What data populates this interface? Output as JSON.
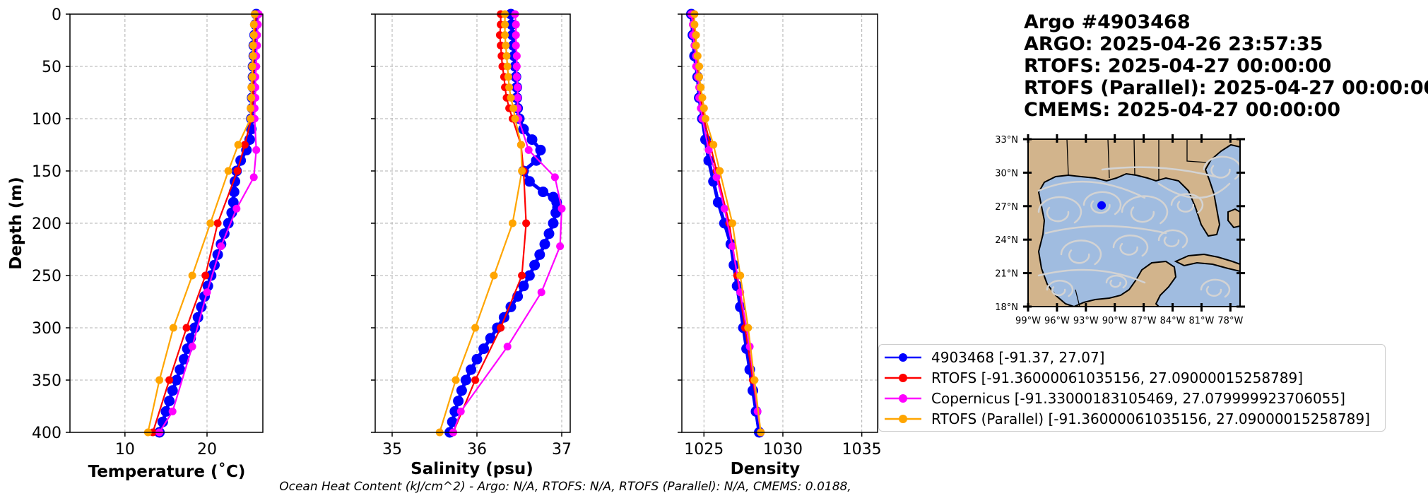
{
  "info": {
    "argo_id": "Argo #4903468",
    "argo_time": "ARGO:  2025-04-26 23:57:35",
    "rtofs_time": "RTOFS: 2025-04-27 00:00:00",
    "rtofs_parallel_time": "RTOFS (Parallel): 2025-04-27 00:00:00",
    "cmems_time": "CMEMS: 2025-04-27 00:00:00"
  },
  "footer": "Ocean Heat Content (kJ/cm^2) - Argo: N/A,  RTOFS: N/A,  RTOFS (Parallel): N/A,  CMEMS: 0.0188,",
  "colors": {
    "argo": "#0000ff",
    "rtofs": "#ff0000",
    "copernicus": "#ff00ff",
    "rtofs_parallel": "#ffa500",
    "land": "#d2b48c",
    "ocean": "#a0bce0",
    "streamlines": "#d3d3d3"
  },
  "legend": [
    {
      "key": "argo",
      "label": "4903468 [-91.37, 27.07]"
    },
    {
      "key": "rtofs",
      "label": "RTOFS [-91.36000061035156, 27.09000015258789]"
    },
    {
      "key": "copernicus",
      "label": "Copernicus [-91.33000183105469, 27.079999923706055]"
    },
    {
      "key": "rtofs_parallel",
      "label": "RTOFS (Parallel) [-91.36000061035156, 27.09000015258789]"
    }
  ],
  "map": {
    "lat_labels": [
      "33°N",
      "30°N",
      "27°N",
      "24°N",
      "21°N",
      "18°N"
    ],
    "lon_labels": [
      "99°W",
      "96°W",
      "93°W",
      "90°W",
      "87°W",
      "84°W",
      "81°W",
      "78°W"
    ],
    "lon_range": [
      -99,
      -77
    ],
    "lat_range": [
      18,
      33
    ],
    "float_location": {
      "lon": -91.37,
      "lat": 27.07
    }
  },
  "chart_data": [
    {
      "type": "line",
      "xlabel": "Temperature (˚C)",
      "ylabel": "Depth (m)",
      "xlim": [
        3.3,
        26.8
      ],
      "ylim": [
        400,
        0
      ],
      "xticks": [
        10,
        20
      ],
      "yticks": [
        0,
        50,
        100,
        150,
        200,
        250,
        300,
        350,
        400
      ],
      "grid": true,
      "series": [
        {
          "key": "argo",
          "depths": [
            0,
            10,
            20,
            30,
            40,
            50,
            60,
            70,
            80,
            90,
            100,
            110,
            120,
            130,
            140,
            150,
            160,
            170,
            180,
            190,
            200,
            210,
            220,
            230,
            240,
            250,
            260,
            270,
            280,
            290,
            300,
            310,
            320,
            330,
            340,
            350,
            360,
            370,
            380,
            390,
            400
          ],
          "values": [
            26.0,
            25.9,
            25.8,
            25.7,
            25.7,
            25.6,
            25.6,
            25.6,
            25.5,
            25.5,
            25.4,
            25.4,
            25.2,
            24.8,
            24.1,
            23.6,
            23.4,
            23.3,
            23.2,
            23.0,
            22.6,
            22.1,
            21.7,
            21.3,
            20.9,
            20.5,
            20.1,
            19.7,
            19.3,
            18.9,
            18.5,
            18.0,
            17.6,
            17.2,
            16.7,
            16.3,
            15.8,
            15.4,
            15.0,
            14.6,
            14.2
          ]
        },
        {
          "key": "rtofs",
          "depths": [
            0,
            10,
            20,
            30,
            40,
            50,
            60,
            70,
            80,
            90,
            100,
            125,
            150,
            200,
            250,
            300,
            350,
            400
          ],
          "values": [
            26.0,
            25.9,
            25.8,
            25.8,
            25.7,
            25.7,
            25.6,
            25.6,
            25.6,
            25.5,
            25.4,
            24.6,
            23.7,
            21.3,
            19.8,
            17.5,
            15.4,
            13.4
          ]
        },
        {
          "key": "copernicus",
          "depths": [
            0,
            10,
            20,
            30,
            40,
            50,
            60,
            70,
            80,
            90,
            100,
            130,
            156,
            186,
            222,
            266,
            318,
            380,
            400
          ],
          "values": [
            26.3,
            26.2,
            26.1,
            26.1,
            26.0,
            26.0,
            25.9,
            25.9,
            25.9,
            25.8,
            25.8,
            26.0,
            25.7,
            23.6,
            21.7,
            20.0,
            18.2,
            15.8,
            14.2
          ]
        },
        {
          "key": "rtofs_parallel",
          "depths": [
            0,
            10,
            20,
            30,
            40,
            50,
            60,
            70,
            80,
            90,
            100,
            125,
            150,
            200,
            250,
            300,
            350,
            400
          ],
          "values": [
            25.8,
            25.7,
            25.7,
            25.6,
            25.6,
            25.5,
            25.5,
            25.4,
            25.4,
            25.3,
            25.3,
            23.8,
            22.6,
            20.4,
            18.2,
            15.9,
            14.2,
            12.8
          ]
        }
      ]
    },
    {
      "type": "line",
      "xlabel": "Salinity (psu)",
      "ylabel": "",
      "xlim": [
        34.8,
        37.1
      ],
      "ylim": [
        400,
        0
      ],
      "xticks": [
        35,
        36,
        37
      ],
      "yticks": [
        0,
        50,
        100,
        150,
        200,
        250,
        300,
        350,
        400
      ],
      "grid": true,
      "series": [
        {
          "key": "argo",
          "depths": [
            0,
            10,
            20,
            30,
            40,
            50,
            60,
            70,
            80,
            90,
            100,
            110,
            120,
            130,
            140,
            150,
            160,
            170,
            175,
            180,
            185,
            190,
            200,
            210,
            220,
            230,
            240,
            250,
            260,
            270,
            280,
            290,
            300,
            310,
            320,
            330,
            340,
            350,
            360,
            370,
            380,
            390,
            400
          ],
          "values": [
            36.4,
            36.41,
            36.42,
            36.43,
            36.44,
            36.45,
            36.46,
            36.47,
            36.47,
            36.48,
            36.5,
            36.55,
            36.65,
            36.75,
            36.7,
            36.55,
            36.62,
            36.78,
            36.9,
            36.94,
            36.95,
            36.93,
            36.9,
            36.85,
            36.8,
            36.74,
            36.68,
            36.62,
            36.55,
            36.48,
            36.4,
            36.32,
            36.24,
            36.16,
            36.08,
            36.0,
            35.93,
            35.87,
            35.82,
            35.78,
            35.74,
            35.71,
            35.68
          ]
        },
        {
          "key": "rtofs",
          "depths": [
            0,
            10,
            20,
            30,
            40,
            50,
            60,
            70,
            80,
            90,
            100,
            125,
            150,
            200,
            250,
            300,
            350,
            400
          ],
          "values": [
            36.28,
            36.28,
            36.27,
            36.28,
            36.29,
            36.3,
            36.32,
            36.33,
            36.35,
            36.38,
            36.42,
            36.52,
            36.55,
            36.58,
            36.53,
            36.28,
            35.98,
            35.72
          ]
        },
        {
          "key": "copernicus",
          "depths": [
            0,
            10,
            20,
            30,
            40,
            50,
            60,
            70,
            80,
            90,
            100,
            130,
            156,
            186,
            222,
            266,
            318,
            380,
            400
          ],
          "values": [
            36.45,
            36.46,
            36.46,
            36.46,
            36.47,
            36.47,
            36.47,
            36.48,
            36.48,
            36.48,
            36.49,
            36.61,
            36.92,
            37.0,
            36.98,
            36.76,
            36.36,
            35.81,
            35.72
          ]
        },
        {
          "key": "rtofs_parallel",
          "depths": [
            0,
            10,
            20,
            30,
            40,
            50,
            60,
            70,
            80,
            90,
            100,
            125,
            150,
            200,
            250,
            300,
            350,
            400
          ],
          "values": [
            36.33,
            36.33,
            36.33,
            36.34,
            36.35,
            36.36,
            36.37,
            36.38,
            36.4,
            36.43,
            36.45,
            36.52,
            36.53,
            36.42,
            36.2,
            35.98,
            35.75,
            35.56
          ]
        }
      ]
    },
    {
      "type": "line",
      "xlabel": "Density",
      "ylabel": "",
      "xlim": [
        1023.6,
        1036.0
      ],
      "ylim": [
        400,
        0
      ],
      "xticks": [
        1025,
        1030,
        1035
      ],
      "yticks": [
        0,
        50,
        100,
        150,
        200,
        250,
        300,
        350,
        400
      ],
      "grid": true,
      "series": [
        {
          "key": "argo",
          "depths": [
            0,
            20,
            40,
            60,
            80,
            100,
            120,
            140,
            160,
            180,
            200,
            220,
            240,
            260,
            280,
            300,
            320,
            340,
            360,
            380,
            400
          ],
          "values": [
            1024.2,
            1024.3,
            1024.4,
            1024.6,
            1024.7,
            1024.9,
            1025.1,
            1025.3,
            1025.6,
            1025.9,
            1026.3,
            1026.7,
            1026.9,
            1027.1,
            1027.3,
            1027.5,
            1027.7,
            1027.9,
            1028.1,
            1028.3,
            1028.5
          ]
        },
        {
          "key": "rtofs",
          "depths": [
            0,
            10,
            20,
            30,
            40,
            50,
            60,
            70,
            80,
            90,
            100,
            125,
            150,
            200,
            250,
            300,
            350,
            400
          ],
          "values": [
            1024.3,
            1024.3,
            1024.4,
            1024.4,
            1024.5,
            1024.6,
            1024.6,
            1024.7,
            1024.8,
            1024.9,
            1025.0,
            1025.4,
            1025.8,
            1026.6,
            1027.1,
            1027.6,
            1028.1,
            1028.6
          ]
        },
        {
          "key": "copernicus",
          "depths": [
            0,
            10,
            20,
            30,
            40,
            50,
            60,
            70,
            80,
            90,
            100,
            130,
            156,
            186,
            222,
            266,
            318,
            380,
            400
          ],
          "values": [
            1024.2,
            1024.3,
            1024.3,
            1024.4,
            1024.5,
            1024.5,
            1024.6,
            1024.7,
            1024.7,
            1024.8,
            1024.9,
            1025.3,
            1025.8,
            1026.3,
            1026.8,
            1027.3,
            1027.9,
            1028.4,
            1028.6
          ]
        },
        {
          "key": "rtofs_parallel",
          "depths": [
            0,
            10,
            20,
            30,
            40,
            50,
            60,
            70,
            80,
            90,
            100,
            125,
            150,
            200,
            250,
            300,
            350,
            400
          ],
          "values": [
            1024.4,
            1024.4,
            1024.5,
            1024.5,
            1024.6,
            1024.7,
            1024.7,
            1024.8,
            1024.9,
            1025.0,
            1025.1,
            1025.6,
            1026.0,
            1026.8,
            1027.3,
            1027.8,
            1028.2,
            1028.6
          ]
        }
      ]
    }
  ]
}
